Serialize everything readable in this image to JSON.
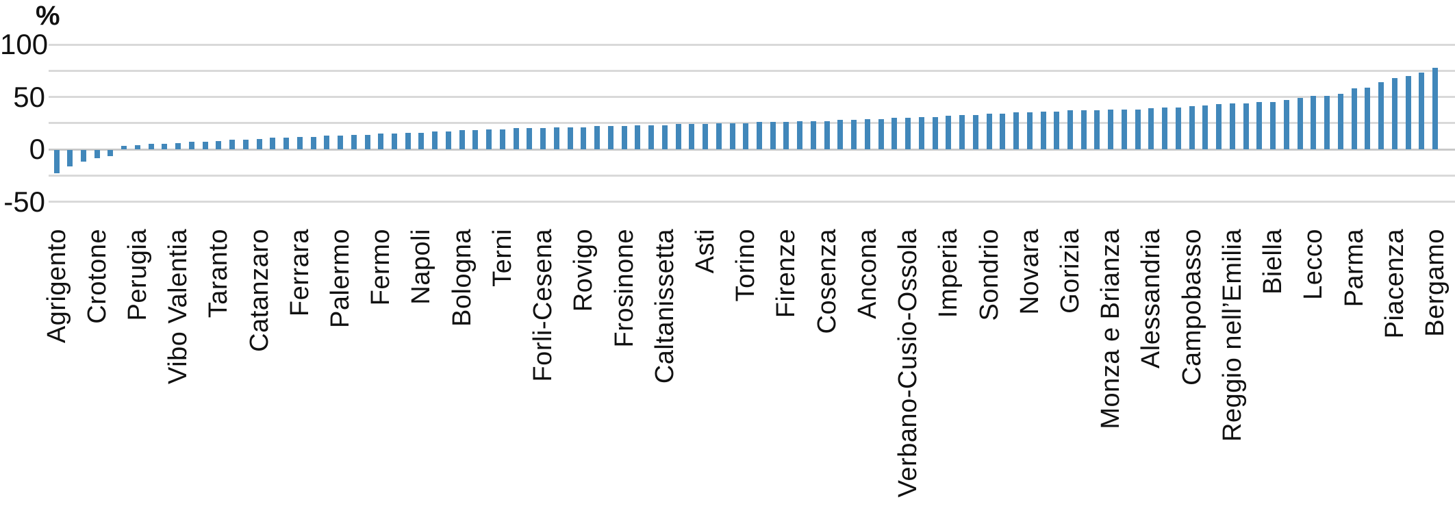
{
  "chart_data": {
    "type": "bar",
    "title": "",
    "unit_label": "%",
    "xlabel": "",
    "ylabel": "%",
    "ylim": [
      -50,
      100
    ],
    "ytick_labels": [
      "100",
      "50",
      "0",
      "-50"
    ],
    "ytick_values": [
      100,
      50,
      0,
      -50
    ],
    "gridline_step": 25,
    "grid": true,
    "legend": "none",
    "bar_color": "#4187ba",
    "gridline_color": "#d9d9d9",
    "zeroline_color": "#c9c9c9",
    "label_every": 3,
    "tick_labels": [
      "Agrigento",
      "Crotone",
      "Perugia",
      "Vibo Valentia",
      "Taranto",
      "Catanzaro",
      "Ferrara",
      "Palermo",
      "Fermo",
      "Napoli",
      "Bologna",
      "Terni",
      "Forli-Cesena",
      "Rovigo",
      "Frosinone",
      "Caltanissetta",
      "Asti",
      "Torino",
      "Firenze",
      "Cosenza",
      "Ancona",
      "Verbano-Cusio-Ossola",
      "Imperia",
      "Sondrio",
      "Novara",
      "Gorizia",
      "Monza e Brianza",
      "Alessandria",
      "Campobasso",
      "Reggio nell’Emilia",
      "Biella",
      "Lecco",
      "Parma",
      "Piacenza",
      "Bergamo"
    ],
    "values": [
      -22,
      -16,
      -11,
      -8,
      -6,
      3,
      4,
      5,
      5,
      6,
      7,
      7,
      8,
      9,
      9,
      10,
      11,
      11,
      12,
      12,
      13,
      13,
      14,
      14,
      15,
      15,
      16,
      16,
      17,
      17,
      18,
      18,
      19,
      19,
      20,
      20,
      20,
      21,
      21,
      21,
      22,
      22,
      22,
      23,
      23,
      23,
      24,
      24,
      24,
      25,
      25,
      25,
      26,
      26,
      26,
      27,
      27,
      27,
      28,
      28,
      29,
      29,
      30,
      30,
      31,
      31,
      32,
      33,
      33,
      34,
      34,
      35,
      35,
      36,
      36,
      37,
      37,
      37,
      38,
      38,
      38,
      39,
      40,
      40,
      41,
      42,
      43,
      44,
      44,
      45,
      45,
      47,
      49,
      51,
      51,
      53,
      58,
      59,
      64,
      68,
      70,
      73,
      78
    ],
    "labeled_values": [
      {
        "label": "Agrigento",
        "value": -22
      },
      {
        "label": "Crotone",
        "value": -8
      },
      {
        "label": "Perugia",
        "value": 4
      },
      {
        "label": "Vibo Valentia",
        "value": 6
      },
      {
        "label": "Taranto",
        "value": 8
      },
      {
        "label": "Catanzaro",
        "value": 10
      },
      {
        "label": "Ferrara",
        "value": 12
      },
      {
        "label": "Palermo",
        "value": 13
      },
      {
        "label": "Fermo",
        "value": 15
      },
      {
        "label": "Napoli",
        "value": 16
      },
      {
        "label": "Bologna",
        "value": 18
      },
      {
        "label": "Terni",
        "value": 19
      },
      {
        "label": "Forli-Cesena",
        "value": 20
      },
      {
        "label": "Rovigo",
        "value": 21
      },
      {
        "label": "Frosinone",
        "value": 22
      },
      {
        "label": "Caltanissetta",
        "value": 23
      },
      {
        "label": "Asti",
        "value": 24
      },
      {
        "label": "Torino",
        "value": 25
      },
      {
        "label": "Firenze",
        "value": 26
      },
      {
        "label": "Cosenza",
        "value": 27
      },
      {
        "label": "Ancona",
        "value": 29
      },
      {
        "label": "Verbano-Cusio-Ossola",
        "value": 30
      },
      {
        "label": "Imperia",
        "value": 32
      },
      {
        "label": "Sondrio",
        "value": 34
      },
      {
        "label": "Novara",
        "value": 35
      },
      {
        "label": "Gorizia",
        "value": 37
      },
      {
        "label": "Monza e Brianza",
        "value": 38
      },
      {
        "label": "Alessandria",
        "value": 39
      },
      {
        "label": "Campobasso",
        "value": 41
      },
      {
        "label": "Reggio nell’Emilia",
        "value": 44
      },
      {
        "label": "Biella",
        "value": 45
      },
      {
        "label": "Lecco",
        "value": 51
      },
      {
        "label": "Parma",
        "value": 58
      },
      {
        "label": "Piacenza",
        "value": 68
      },
      {
        "label": "Bergamo",
        "value": 78
      }
    ]
  }
}
